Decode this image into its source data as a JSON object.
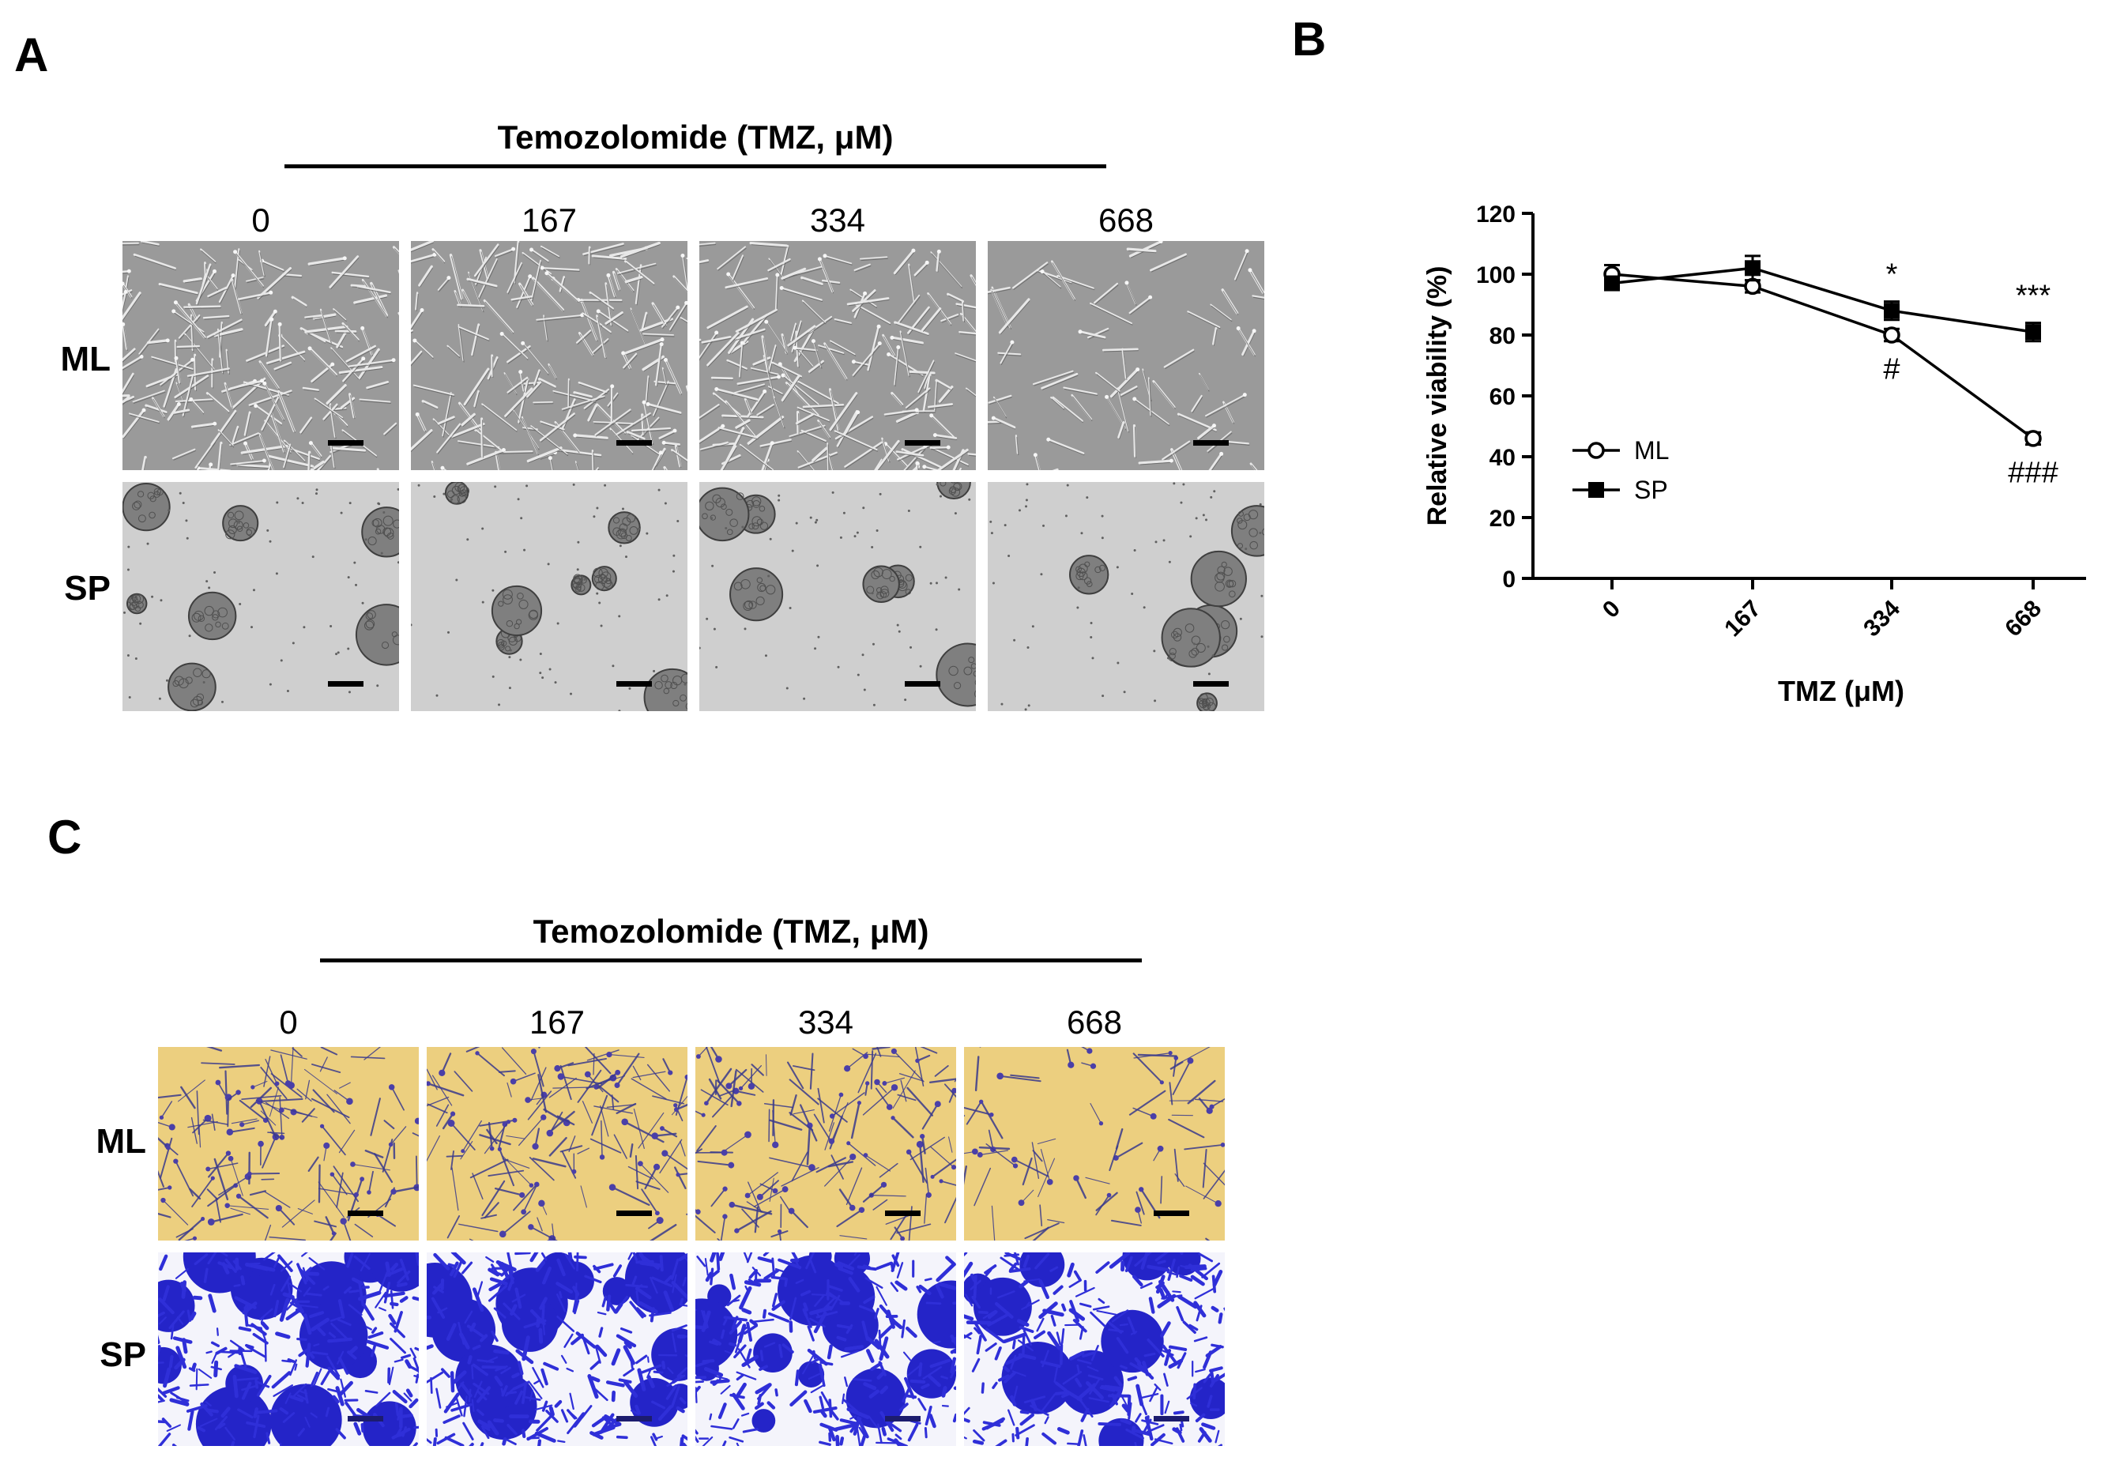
{
  "figure": {
    "panel_a": {
      "letter": "A",
      "drug_title": "Temozolomide (TMZ, μM)",
      "doses": [
        "0",
        "167",
        "334",
        "668"
      ],
      "rows": [
        "ML",
        "SP"
      ]
    },
    "panel_b": {
      "letter": "B"
    },
    "panel_c": {
      "letter": "C",
      "drug_title": "Temozolomide (TMZ, μM)",
      "doses": [
        "0",
        "167",
        "334",
        "668"
      ],
      "rows": [
        "ML",
        "SP"
      ]
    }
  },
  "chart_data": {
    "type": "line",
    "title": "",
    "xlabel": "TMZ (μM)",
    "ylabel": "Relative viability (%)",
    "categories": [
      "0",
      "167",
      "334",
      "668"
    ],
    "ylim": [
      0,
      120
    ],
    "yticks": [
      0,
      20,
      40,
      60,
      80,
      100,
      120
    ],
    "grid": false,
    "legend_position": "left-middle",
    "series": [
      {
        "name": "ML",
        "marker": "open-circle",
        "values": [
          100,
          96,
          80,
          46
        ],
        "errors": [
          3,
          2,
          2,
          2
        ]
      },
      {
        "name": "SP",
        "marker": "filled-square",
        "values": [
          97,
          102,
          88,
          81
        ],
        "errors": [
          2,
          4,
          3,
          3
        ]
      }
    ],
    "annotations": [
      {
        "text": "*",
        "category": "334",
        "position": "above"
      },
      {
        "text": "#",
        "category": "334",
        "position": "below"
      },
      {
        "text": "***",
        "category": "668",
        "position": "above"
      },
      {
        "text": "###",
        "category": "668",
        "position": "below"
      }
    ],
    "colors": {
      "line": "#000000",
      "axis": "#000000"
    }
  }
}
